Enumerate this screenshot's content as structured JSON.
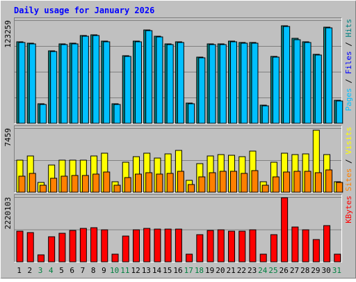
{
  "chart_data": {
    "type": "bar",
    "title": "Daily usage for January 2026",
    "days": [
      {
        "label": "1",
        "weekend": false
      },
      {
        "label": "2",
        "weekend": false
      },
      {
        "label": "3",
        "weekend": true
      },
      {
        "label": "4",
        "weekend": true
      },
      {
        "label": "5",
        "weekend": false
      },
      {
        "label": "6",
        "weekend": false
      },
      {
        "label": "7",
        "weekend": false
      },
      {
        "label": "8",
        "weekend": false
      },
      {
        "label": "9",
        "weekend": false
      },
      {
        "label": "10",
        "weekend": true
      },
      {
        "label": "11",
        "weekend": true
      },
      {
        "label": "12",
        "weekend": false
      },
      {
        "label": "13",
        "weekend": false
      },
      {
        "label": "14",
        "weekend": false
      },
      {
        "label": "15",
        "weekend": false
      },
      {
        "label": "16",
        "weekend": false
      },
      {
        "label": "17",
        "weekend": true
      },
      {
        "label": "18",
        "weekend": true
      },
      {
        "label": "19",
        "weekend": false
      },
      {
        "label": "20",
        "weekend": false
      },
      {
        "label": "21",
        "weekend": false
      },
      {
        "label": "22",
        "weekend": false
      },
      {
        "label": "23",
        "weekend": false
      },
      {
        "label": "24",
        "weekend": true
      },
      {
        "label": "25",
        "weekend": true
      },
      {
        "label": "26",
        "weekend": false
      },
      {
        "label": "27",
        "weekend": false
      },
      {
        "label": "28",
        "weekend": false
      },
      {
        "label": "29",
        "weekend": false
      },
      {
        "label": "30",
        "weekend": false
      },
      {
        "label": "31",
        "weekend": true
      }
    ],
    "panels": [
      {
        "id": "hits",
        "ymax": 123259,
        "ymax_label": "123259",
        "legend": [
          {
            "text": "Pages",
            "color": "#00c0ff"
          },
          {
            "text": " / ",
            "color": "#000000"
          },
          {
            "text": "Files",
            "color": "#0000ff"
          },
          {
            "text": " / ",
            "color": "#000000"
          },
          {
            "text": "Hits",
            "color": "#008080"
          }
        ],
        "series": [
          {
            "color": "#008080",
            "values": [
              97500,
              95700,
              23500,
              86500,
              95300,
              96100,
              104600,
              106100,
              98600,
              23700,
              80900,
              98500,
              111600,
              104500,
              94800,
              97500,
              24000,
              79300,
              94700,
              95300,
              98400,
              96700,
              96300,
              21800,
              79700,
              116800,
              101200,
              97400,
              82300,
              115100,
              27800
            ]
          },
          {
            "color": "#00c0ff",
            "values": [
              96500,
              94800,
              22800,
              85600,
              94400,
              95200,
              103700,
              105200,
              97700,
              22900,
              80000,
              97600,
              110700,
              103600,
              93900,
              96600,
              23200,
              78400,
              93800,
              94400,
              97500,
              95800,
              95400,
              21000,
              78800,
              115900,
              100300,
              96500,
              81400,
              114200,
              27000
            ]
          }
        ]
      },
      {
        "id": "visits",
        "ymax": 7459,
        "ymax_label": "7459",
        "legend": [
          {
            "text": "Sites",
            "color": "#ff8000"
          },
          {
            "text": " / ",
            "color": "#000000"
          },
          {
            "text": "Visits",
            "color": "#ffff00"
          }
        ],
        "series": [
          {
            "color": "#ffff00",
            "values": [
              3750,
              4250,
              1100,
              3200,
              3700,
              3750,
              3700,
              4250,
              4550,
              1200,
              3450,
              4100,
              4550,
              4000,
              4450,
              4900,
              1350,
              3350,
              4250,
              4400,
              4300,
              4100,
              4800,
              1250,
              3450,
              4550,
              4400,
              4450,
              7250,
              4350,
              1250
            ]
          },
          {
            "color": "#ff8000",
            "values": [
              1850,
              2200,
              850,
              1600,
              1900,
              1950,
              1950,
              2100,
              2350,
              800,
              1700,
              2100,
              2300,
              2100,
              2200,
              2400,
              900,
              1800,
              2300,
              2450,
              2400,
              2200,
              2500,
              850,
              1800,
              2350,
              2400,
              2450,
              2300,
              2600,
              1100
            ]
          }
        ]
      },
      {
        "id": "kbytes",
        "ymax": 2220103,
        "ymax_label": "2220103",
        "legend": [
          {
            "text": "KBytes",
            "color": "#ff0000"
          }
        ],
        "series": [
          {
            "color": "#ff0000",
            "values": [
              1040000,
              1010000,
              250000,
              860000,
              990000,
              1070000,
              1140000,
              1170000,
              1100000,
              270000,
              880000,
              1100000,
              1140000,
              1120000,
              1120000,
              1120000,
              270000,
              920000,
              1080000,
              1100000,
              1040000,
              1040000,
              1100000,
              270000,
              930000,
              2200000,
              1200000,
              1110000,
              760000,
              1230000,
              270000
            ]
          }
        ]
      }
    ]
  }
}
